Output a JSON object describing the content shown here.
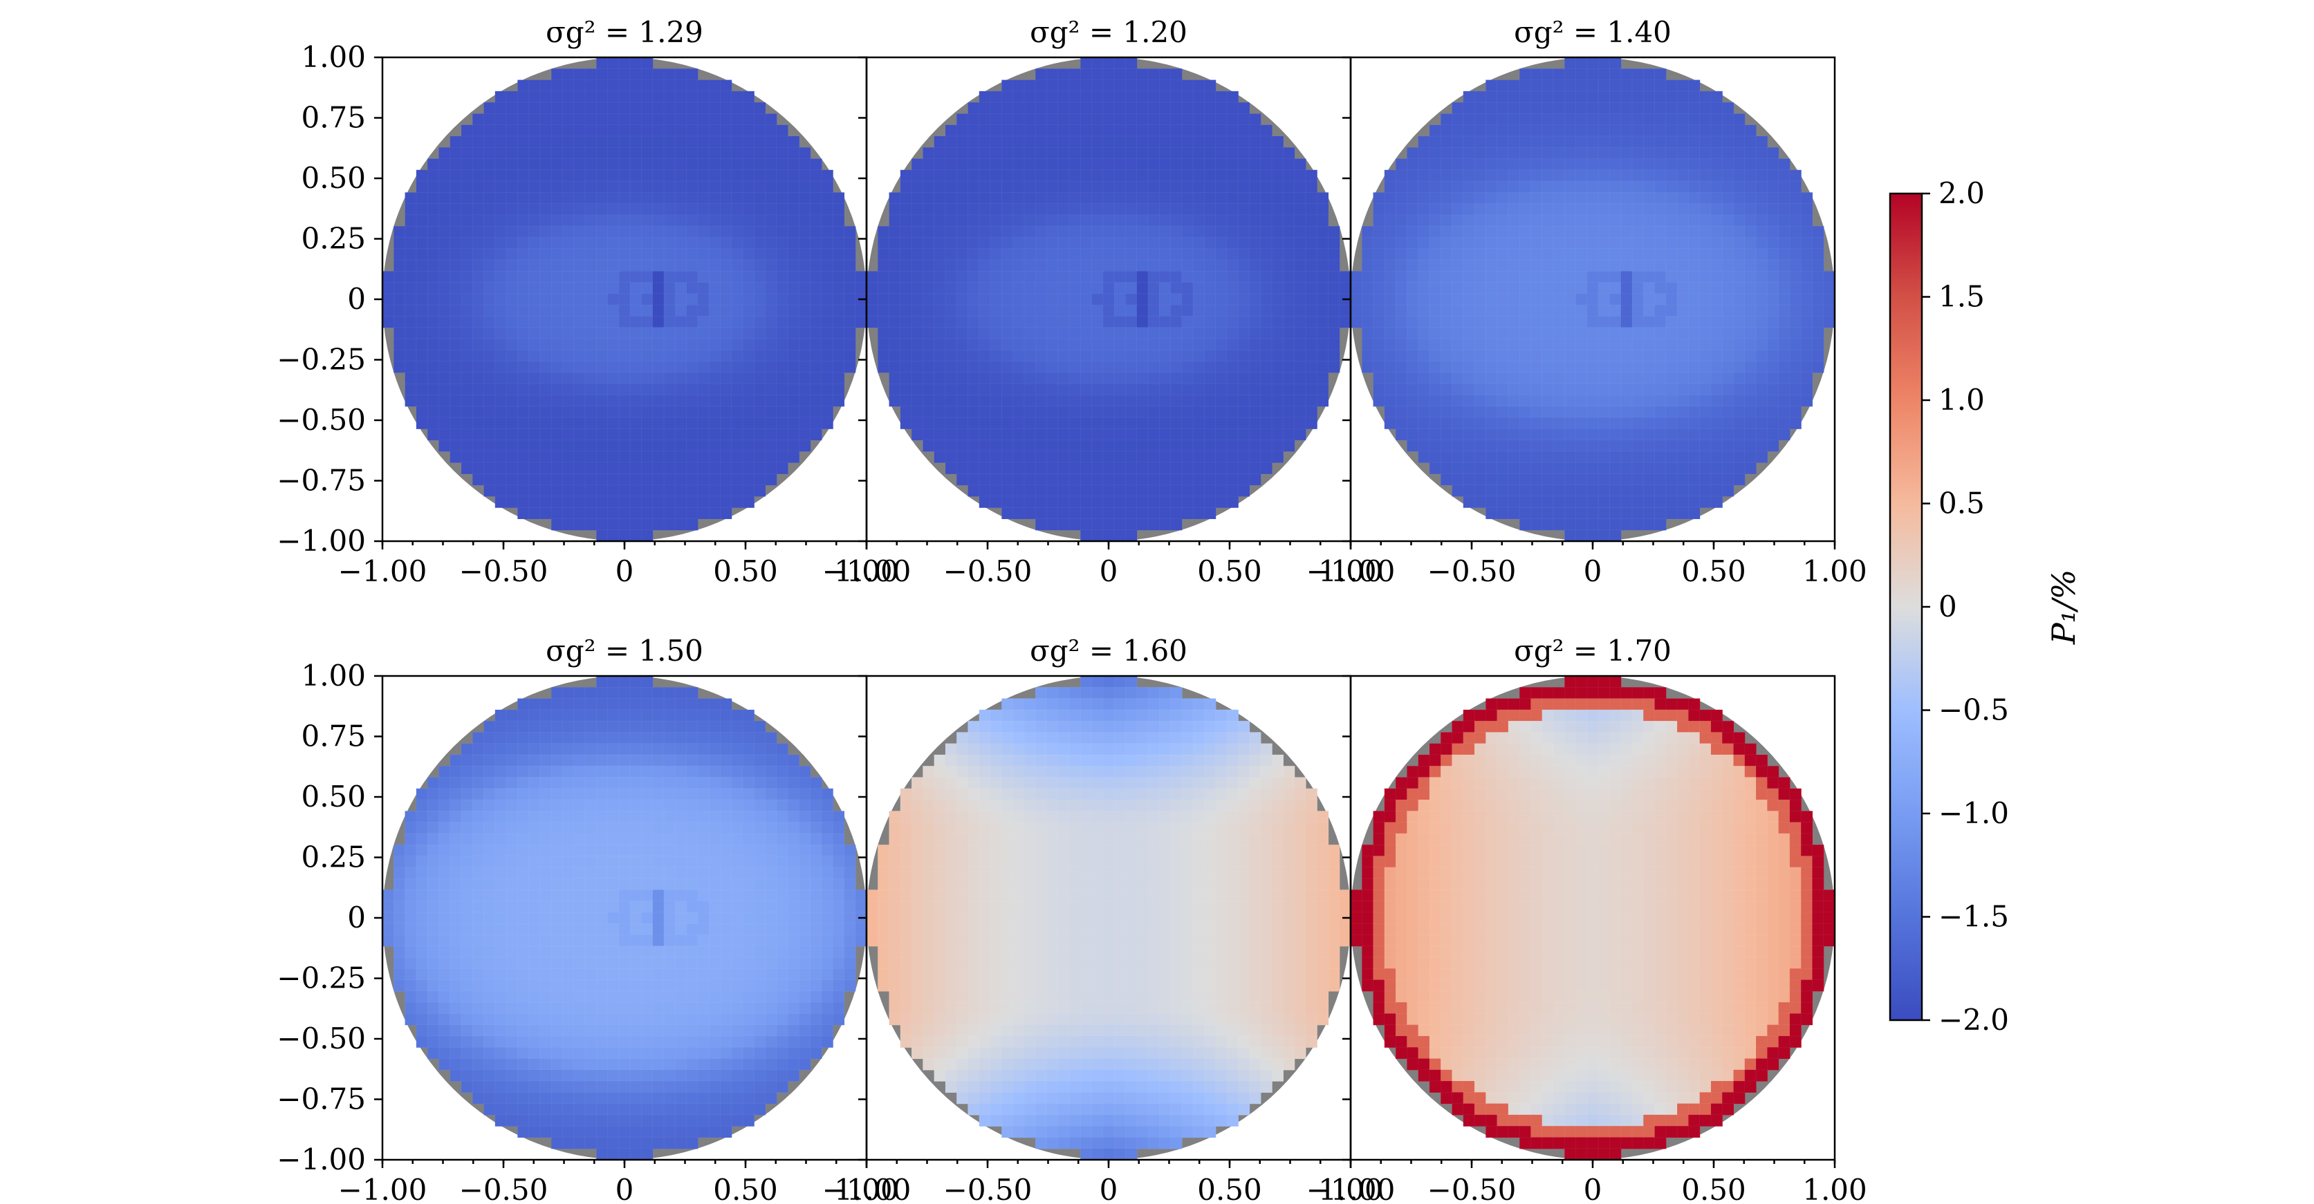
{
  "chart_data": [
    {
      "type": "heatmap",
      "title": "σg² = 1.29",
      "x_range": [
        -1.0,
        1.0
      ],
      "y_range": [
        -1.0,
        1.0
      ],
      "x_tick_labels": [
        "−1.00",
        "−0.50",
        "0",
        "0.50",
        "1.00"
      ],
      "y_tick_labels": [
        "1.00",
        "0.75",
        "0.50",
        "0.25",
        "0",
        "−0.25",
        "−0.50",
        "−0.75",
        "−1.00"
      ],
      "grid": false,
      "field": {
        "P_edge": -1.95,
        "P_center": -1.55,
        "lobe_a": 0.55,
        "lobe_b": 0.32,
        "center_dip": -0.15
      }
    },
    {
      "type": "heatmap",
      "title": "σg² = 1.20",
      "x_range": [
        -1.0,
        1.0
      ],
      "y_range": [
        -1.0,
        1.0
      ],
      "x_tick_labels": [
        "−1.00",
        "−0.50",
        "0",
        "0.50",
        "1.00"
      ],
      "y_tick_labels": [],
      "grid": false,
      "field": {
        "P_edge": -1.95,
        "P_center": -1.6,
        "lobe_a": 0.55,
        "lobe_b": 0.32,
        "center_dip": -0.15
      }
    },
    {
      "type": "heatmap",
      "title": "σg² = 1.40",
      "x_range": [
        -1.0,
        1.0
      ],
      "y_range": [
        -1.0,
        1.0
      ],
      "x_tick_labels": [
        "−1.00",
        "−0.50",
        "0",
        "0.50",
        "1.00"
      ],
      "y_tick_labels": [],
      "grid": false,
      "field": {
        "P_edge": -1.85,
        "P_center": -1.25,
        "lobe_a": 0.75,
        "lobe_b": 0.48,
        "center_dip": -0.12
      }
    },
    {
      "type": "heatmap",
      "title": "σg² = 1.50",
      "x_range": [
        -1.0,
        1.0
      ],
      "y_range": [
        -1.0,
        1.0
      ],
      "x_tick_labels": [
        "−1.00",
        "−0.50",
        "0",
        "0.50",
        "1.00"
      ],
      "y_tick_labels": [
        "1.00",
        "0.75",
        "0.50",
        "0.25",
        "0",
        "−0.25",
        "−0.50",
        "−0.75",
        "−1.00"
      ],
      "grid": false,
      "field": {
        "P_edge": -1.8,
        "P_center": -0.75,
        "lobe_a": 0.9,
        "lobe_b": 0.62,
        "center_dip": -0.1
      }
    },
    {
      "type": "heatmap",
      "title": "σg² = 1.60",
      "x_range": [
        -1.0,
        1.0
      ],
      "y_range": [
        -1.0,
        1.0
      ],
      "x_tick_labels": [
        "−1.00",
        "−0.50",
        "0",
        "0.50",
        "1.00"
      ],
      "y_tick_labels": [],
      "grid": false,
      "field": {
        "P_top_bottom": -1.5,
        "P_center": -0.1,
        "P_side": 0.55
      }
    },
    {
      "type": "heatmap",
      "title": "σg² = 1.70",
      "x_range": [
        -1.0,
        1.0
      ],
      "y_range": [
        -1.0,
        1.0
      ],
      "x_tick_labels": [
        "−1.00",
        "−0.50",
        "0",
        "0.50",
        "1.00"
      ],
      "y_tick_labels": [],
      "grid": false,
      "field": {
        "P_top_bottom": 0.0,
        "P_center": 0.1,
        "P_side": 0.85,
        "P_rim": 2.0
      }
    }
  ],
  "colorbar": {
    "label": "P₁/%",
    "range": [
      -2.0,
      2.0
    ],
    "tick_labels": [
      "2.0",
      "1.5",
      "1.0",
      "0.5",
      "0",
      "−0.5",
      "−1.0",
      "−1.5",
      "−2.0"
    ],
    "tick_values": [
      2.0,
      1.5,
      1.0,
      0.5,
      0,
      -0.5,
      -1.0,
      -1.5,
      -2.0
    ],
    "colormap": "coolwarm"
  }
}
